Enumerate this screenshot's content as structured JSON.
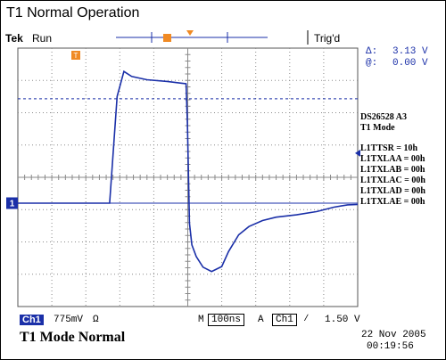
{
  "title": "T1 Normal Operation",
  "scope": {
    "brand": "Tek",
    "run_state": "Run",
    "trigger_state": "Trig'd",
    "trigger_marker": "T",
    "cursor": {
      "delta_label": "Δ:",
      "delta_value": "3.13 V",
      "at_label": "@:",
      "at_value": "0.00 V"
    },
    "settings": {
      "header": "DS26528 A3",
      "mode": "T1 Mode",
      "registers": [
        "L1TTSR = 10h",
        "L1TXLAA = 00h",
        "L1TXLAB = 00h",
        "L1TXLAC = 00h",
        "L1TXLAD = 00h",
        "L1TXLAE = 00h"
      ]
    },
    "channel_marker": "1",
    "status_bar": {
      "channel": "Ch1",
      "volts_div": "775mV",
      "impedance_symbol": "Ω",
      "m_label": "M",
      "time_div": "100ns",
      "a_label": "A",
      "trig_channel": "Ch1",
      "trig_slope": "∕",
      "trig_level": "1.50 V"
    },
    "caption": "T1 Mode Normal",
    "date": "22 Nov 2005",
    "time": "00:19:56",
    "colors": {
      "trace": "#1a2fa8",
      "marker": "#f08a24",
      "channel_badge": "#1a2fa8"
    }
  },
  "chart_data": {
    "type": "line",
    "xlabel": "",
    "ylabel": "",
    "x_unit": "ns",
    "y_unit": "V",
    "xlim": [
      -500,
      500
    ],
    "ylim": [
      -3.1,
      4.65
    ],
    "grid": true,
    "series": [
      {
        "x": [
          -500,
          -230,
          -208,
          -188,
          -165,
          -120,
          -60,
          -20,
          -5,
          -1,
          5,
          12,
          25,
          45,
          70,
          100,
          120,
          150,
          180,
          220,
          260,
          320,
          380,
          430,
          470,
          500
        ],
        "y": [
          0.0,
          0.0,
          3.2,
          3.95,
          3.8,
          3.7,
          3.65,
          3.6,
          3.58,
          2.4,
          -0.6,
          -1.25,
          -1.6,
          -1.92,
          -2.05,
          -1.9,
          -1.45,
          -0.95,
          -0.7,
          -0.52,
          -0.42,
          -0.35,
          -0.25,
          -0.12,
          -0.05,
          -0.04
        ]
      }
    ],
    "cursor_levels_v": [
      3.13,
      0.0
    ],
    "trigger_level_v": 1.5
  }
}
